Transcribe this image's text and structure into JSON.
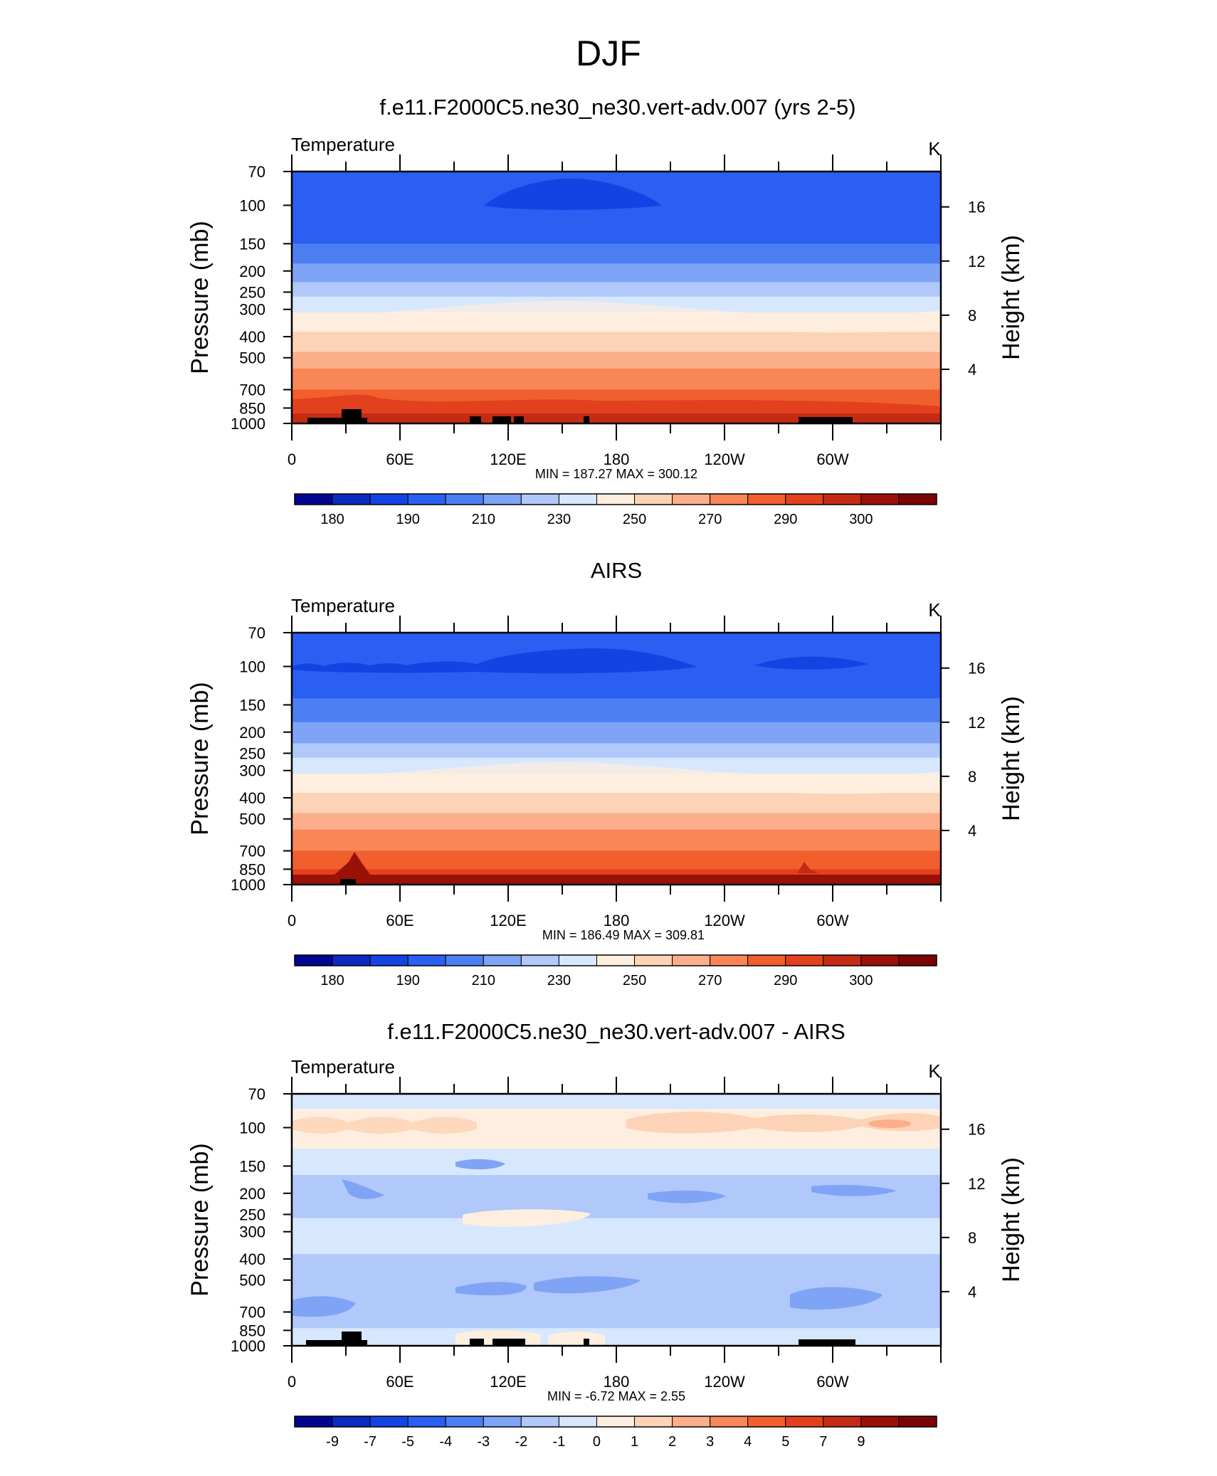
{
  "main_title": "DJF",
  "chart_data": [
    {
      "type": "heatmap",
      "title": "f.e11.F2000C5.ne30_ne30.vert-adv.007 (yrs 2-5)",
      "variable_label": "Temperature",
      "units_label": "K",
      "ylabel": "Pressure (mb)",
      "y2label": "Height (km)",
      "y_ticks": [
        "70",
        "100",
        "150",
        "200",
        "250",
        "300",
        "400",
        "500",
        "700",
        "850",
        "1000"
      ],
      "y2_ticks": [
        "16",
        "12",
        "8",
        "4"
      ],
      "x_ticks": [
        "0",
        "60E",
        "120E",
        "180",
        "120W",
        "60W"
      ],
      "min_max": "MIN = 187.27  MAX = 300.12",
      "colorbar_labels": [
        "180",
        "190",
        "210",
        "230",
        "250",
        "270",
        "290",
        "300"
      ],
      "colorbar_colors": [
        "#00068f",
        "#0b2ac0",
        "#1443e4",
        "#2a5ff2",
        "#4d7ff3",
        "#7fa4f6",
        "#b0c8fa",
        "#d7e7fd",
        "#fdeedf",
        "#fdd3b7",
        "#fcae8a",
        "#f88657",
        "#f15f2e",
        "#e3401d",
        "#c42b15",
        "#9a1108",
        "#7c0404"
      ],
      "bands": [
        {
          "p": [
            70,
            150
          ],
          "color": "#2a5ff2"
        },
        {
          "p": [
            150,
            185
          ],
          "color": "#4d7ff3"
        },
        {
          "p": [
            185,
            225
          ],
          "color": "#7fa4f6"
        },
        {
          "p": [
            225,
            262
          ],
          "color": "#b0c8fa"
        },
        {
          "p": [
            262,
            310
          ],
          "color": "#d7e7fd"
        },
        {
          "p": [
            310,
            380
          ],
          "color": "#fdeedf"
        },
        {
          "p": [
            380,
            470
          ],
          "color": "#fdd3b7"
        },
        {
          "p": [
            470,
            560
          ],
          "color": "#fcae8a"
        },
        {
          "p": [
            560,
            700
          ],
          "color": "#f88657"
        },
        {
          "p": [
            700,
            850
          ],
          "color": "#f15f2e"
        },
        {
          "p": [
            850,
            1000
          ],
          "color": "#e3401d"
        }
      ]
    },
    {
      "type": "heatmap",
      "title": "AIRS",
      "variable_label": "Temperature",
      "units_label": "K",
      "ylabel": "Pressure (mb)",
      "y2label": "Height (km)",
      "y_ticks": [
        "70",
        "100",
        "150",
        "200",
        "250",
        "300",
        "400",
        "500",
        "700",
        "850",
        "1000"
      ],
      "y2_ticks": [
        "16",
        "12",
        "8",
        "4"
      ],
      "x_ticks": [
        "0",
        "60E",
        "120E",
        "180",
        "120W",
        "60W"
      ],
      "min_max": "MIN = 186.49  MAX = 309.81",
      "colorbar_labels": [
        "180",
        "190",
        "210",
        "230",
        "250",
        "270",
        "290",
        "300"
      ],
      "colorbar_colors": [
        "#00068f",
        "#0b2ac0",
        "#1443e4",
        "#2a5ff2",
        "#4d7ff3",
        "#7fa4f6",
        "#b0c8fa",
        "#d7e7fd",
        "#fdeedf",
        "#fdd3b7",
        "#fcae8a",
        "#f88657",
        "#f15f2e",
        "#e3401d",
        "#c42b15",
        "#9a1108",
        "#7c0404"
      ],
      "bands": [
        {
          "p": [
            70,
            140
          ],
          "color": "#2a5ff2"
        },
        {
          "p": [
            140,
            180
          ],
          "color": "#4d7ff3"
        },
        {
          "p": [
            180,
            225
          ],
          "color": "#7fa4f6"
        },
        {
          "p": [
            225,
            262
          ],
          "color": "#b0c8fa"
        },
        {
          "p": [
            262,
            310
          ],
          "color": "#d7e7fd"
        },
        {
          "p": [
            310,
            380
          ],
          "color": "#fdeedf"
        },
        {
          "p": [
            380,
            470
          ],
          "color": "#fdd3b7"
        },
        {
          "p": [
            470,
            560
          ],
          "color": "#fcae8a"
        },
        {
          "p": [
            560,
            700
          ],
          "color": "#f88657"
        },
        {
          "p": [
            700,
            850
          ],
          "color": "#f15f2e"
        },
        {
          "p": [
            850,
            940
          ],
          "color": "#e3401d"
        },
        {
          "p": [
            940,
            1000
          ],
          "color": "#c42b15"
        }
      ]
    },
    {
      "type": "heatmap",
      "title": "f.e11.F2000C5.ne30_ne30.vert-adv.007 - AIRS",
      "variable_label": "Temperature",
      "units_label": "K",
      "ylabel": "Pressure (mb)",
      "y2label": "Height (km)",
      "y_ticks": [
        "70",
        "100",
        "150",
        "200",
        "250",
        "300",
        "400",
        "500",
        "700",
        "850",
        "1000"
      ],
      "y2_ticks": [
        "16",
        "12",
        "8",
        "4"
      ],
      "x_ticks": [
        "0",
        "60E",
        "120E",
        "180",
        "120W",
        "60W"
      ],
      "min_max": "MIN =  -6.72  MAX =   2.55",
      "colorbar_labels": [
        "-9",
        "-7",
        "-5",
        "-4",
        "-3",
        "-2",
        "-1",
        "0",
        "1",
        "2",
        "3",
        "4",
        "5",
        "7",
        "9"
      ],
      "colorbar_colors": [
        "#00068f",
        "#0b2ac0",
        "#1443e4",
        "#2a5ff2",
        "#4d7ff3",
        "#7fa4f6",
        "#b0c8fa",
        "#d7e7fd",
        "#fdeedf",
        "#fdd3b7",
        "#fcae8a",
        "#f88657",
        "#f15f2e",
        "#e3401d",
        "#c42b15",
        "#9a1108",
        "#7c0404"
      ],
      "bands": [
        {
          "p": [
            70,
            82
          ],
          "color": "#d7e7fd"
        },
        {
          "p": [
            82,
            125
          ],
          "color": "#fdeedf"
        },
        {
          "p": [
            125,
            165
          ],
          "color": "#d7e7fd"
        },
        {
          "p": [
            165,
            260
          ],
          "color": "#b0c8fa"
        },
        {
          "p": [
            260,
            380
          ],
          "color": "#d7e7fd"
        },
        {
          "p": [
            380,
            640
          ],
          "color": "#b0c8fa"
        },
        {
          "p": [
            640,
            830
          ],
          "color": "#b0c8fa"
        },
        {
          "p": [
            830,
            1000
          ],
          "color": "#d7e7fd"
        }
      ]
    }
  ]
}
